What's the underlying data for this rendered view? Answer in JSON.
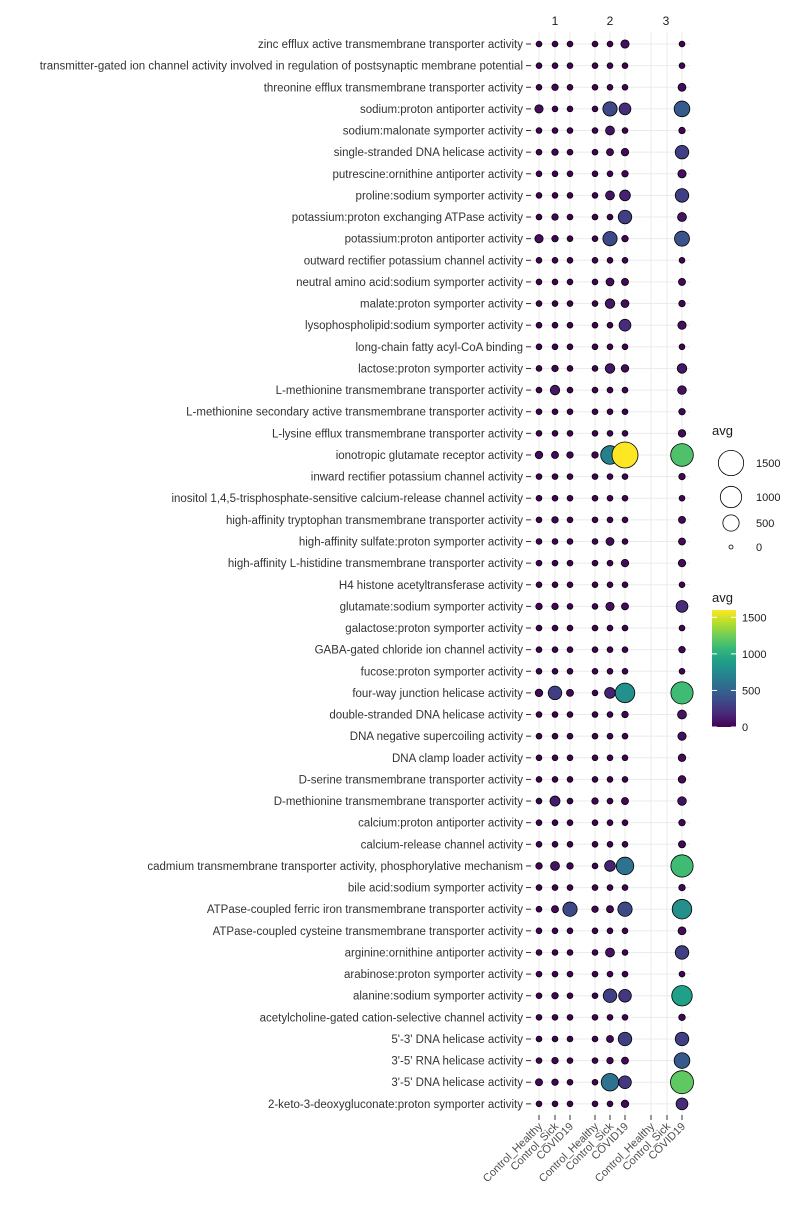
{
  "colors": {
    "viridis": [
      "#440154",
      "#482878",
      "#3e4a89",
      "#31688e",
      "#26828e",
      "#1f9e89",
      "#35b779",
      "#6dcd59",
      "#b4de2c",
      "#fde725"
    ],
    "grid": "#ebebeb",
    "point_stroke": "#000000"
  },
  "chart_data": {
    "type": "dot-plot",
    "facets": [
      "1",
      "2",
      "3"
    ],
    "x_categories": [
      "Control_Healthy",
      "Control_Sick",
      "COVID19"
    ],
    "size_legend": {
      "title": "avg",
      "breaks": [
        1500,
        1000,
        500,
        0
      ]
    },
    "color_legend": {
      "title": "avg",
      "breaks": [
        1500,
        1000,
        500,
        0
      ],
      "range": [
        0,
        1600
      ]
    },
    "terms": [
      "zinc efflux active transmembrane transporter activity",
      "transmitter-gated ion channel activity involved in regulation of postsynaptic membrane potential",
      "threonine efflux transmembrane transporter activity",
      "sodium:proton antiporter activity",
      "sodium:malonate symporter activity",
      "single-stranded DNA helicase activity",
      "putrescine:ornithine antiporter activity",
      "proline:sodium symporter activity",
      "potassium:proton exchanging ATPase activity",
      "potassium:proton antiporter activity",
      "outward rectifier potassium channel activity",
      "neutral amino acid:sodium symporter activity",
      "malate:proton symporter activity",
      "lysophospholipid:sodium symporter activity",
      "long-chain fatty acyl-CoA binding",
      "lactose:proton symporter activity",
      "L-methionine transmembrane transporter activity",
      "L-methionine secondary active transmembrane transporter activity",
      "L-lysine efflux transmembrane transporter activity",
      "ionotropic glutamate receptor activity",
      "inward rectifier potassium channel activity",
      "inositol 1,4,5-trisphosphate-sensitive calcium-release channel activity",
      "high-affinity tryptophan transmembrane transporter activity",
      "high-affinity sulfate:proton symporter activity",
      "high-affinity L-histidine transmembrane transporter activity",
      "H4 histone acetyltransferase activity",
      "glutamate:sodium symporter activity",
      "galactose:proton symporter activity",
      "GABA-gated chloride ion channel activity",
      "fucose:proton symporter activity",
      "four-way junction helicase activity",
      "double-stranded DNA helicase activity",
      "DNA negative supercoiling activity",
      "DNA clamp loader activity",
      "D-serine transmembrane transporter activity",
      "D-methionine transmembrane transporter activity",
      "calcium:proton antiporter activity",
      "calcium-release channel activity",
      "cadmium transmembrane transporter activity, phosphorylative mechanism",
      "bile acid:sodium symporter activity",
      "ATPase-coupled ferric iron transmembrane transporter activity",
      "ATPase-coupled cysteine transmembrane transporter activity",
      "arginine:ornithine antiporter activity",
      "arabinose:proton symporter activity",
      "alanine:sodium symporter activity",
      "acetylcholine-gated cation-selective channel activity",
      "5'-3' DNA helicase activity",
      "3'-5' RNA helicase activity",
      "3'-5' DNA helicase activity",
      "2-keto-3-deoxygluconate:proton symporter activity"
    ],
    "values": [
      [
        10,
        10,
        10,
        10,
        10,
        60,
        null,
        null,
        10
      ],
      [
        10,
        10,
        10,
        10,
        10,
        10,
        null,
        null,
        10
      ],
      [
        10,
        20,
        10,
        10,
        10,
        10,
        null,
        null,
        50
      ],
      [
        60,
        10,
        10,
        10,
        350,
        200,
        null,
        null,
        450
      ],
      [
        10,
        10,
        10,
        10,
        80,
        10,
        null,
        null,
        20
      ],
      [
        10,
        20,
        10,
        10,
        30,
        40,
        null,
        null,
        300
      ],
      [
        10,
        10,
        10,
        10,
        10,
        20,
        null,
        null,
        60
      ],
      [
        10,
        10,
        10,
        10,
        80,
        150,
        null,
        null,
        300
      ],
      [
        10,
        20,
        10,
        10,
        10,
        300,
        null,
        null,
        80
      ],
      [
        60,
        20,
        10,
        10,
        350,
        20,
        null,
        null,
        400
      ],
      [
        10,
        10,
        10,
        10,
        10,
        10,
        null,
        null,
        10
      ],
      [
        10,
        10,
        10,
        10,
        50,
        30,
        null,
        null,
        30
      ],
      [
        10,
        10,
        10,
        10,
        100,
        50,
        null,
        null,
        20
      ],
      [
        10,
        10,
        10,
        10,
        10,
        200,
        null,
        null,
        60
      ],
      [
        10,
        10,
        10,
        10,
        10,
        10,
        null,
        null,
        10
      ],
      [
        10,
        20,
        10,
        10,
        100,
        40,
        null,
        null,
        100
      ],
      [
        10,
        100,
        10,
        10,
        10,
        10,
        null,
        null,
        70
      ],
      [
        10,
        10,
        10,
        10,
        10,
        10,
        null,
        null,
        20
      ],
      [
        10,
        10,
        10,
        10,
        10,
        10,
        null,
        null,
        40
      ],
      [
        40,
        30,
        20,
        20,
        700,
        1600,
        null,
        null,
        1150
      ],
      [
        10,
        10,
        10,
        10,
        10,
        10,
        null,
        null,
        20
      ],
      [
        10,
        10,
        10,
        10,
        10,
        10,
        null,
        null,
        10
      ],
      [
        10,
        20,
        10,
        10,
        10,
        10,
        null,
        null,
        30
      ],
      [
        10,
        10,
        10,
        10,
        50,
        10,
        null,
        null,
        30
      ],
      [
        10,
        10,
        10,
        10,
        10,
        40,
        null,
        null,
        40
      ],
      [
        10,
        10,
        10,
        10,
        10,
        10,
        null,
        null,
        10
      ],
      [
        20,
        20,
        10,
        10,
        60,
        30,
        null,
        null,
        200
      ],
      [
        10,
        10,
        10,
        10,
        10,
        10,
        null,
        null,
        10
      ],
      [
        10,
        10,
        10,
        10,
        10,
        10,
        null,
        null,
        20
      ],
      [
        10,
        10,
        10,
        10,
        10,
        10,
        null,
        null,
        10
      ],
      [
        40,
        300,
        30,
        10,
        150,
        800,
        null,
        null,
        1100
      ],
      [
        10,
        10,
        10,
        10,
        10,
        20,
        null,
        null,
        80
      ],
      [
        10,
        10,
        10,
        10,
        10,
        10,
        null,
        null,
        60
      ],
      [
        10,
        10,
        10,
        10,
        10,
        10,
        null,
        null,
        40
      ],
      [
        10,
        10,
        10,
        10,
        10,
        10,
        null,
        null,
        40
      ],
      [
        10,
        120,
        10,
        20,
        10,
        30,
        null,
        null,
        70
      ],
      [
        10,
        10,
        10,
        10,
        10,
        10,
        null,
        null,
        20
      ],
      [
        10,
        10,
        10,
        10,
        10,
        10,
        null,
        null,
        30
      ],
      [
        20,
        80,
        20,
        10,
        150,
        600,
        null,
        null,
        1100
      ],
      [
        10,
        10,
        10,
        10,
        10,
        10,
        null,
        null,
        20
      ],
      [
        10,
        30,
        350,
        20,
        30,
        350,
        null,
        null,
        800
      ],
      [
        10,
        10,
        10,
        10,
        10,
        10,
        null,
        null,
        50
      ],
      [
        10,
        10,
        10,
        10,
        80,
        10,
        null,
        null,
        300
      ],
      [
        10,
        10,
        10,
        10,
        10,
        10,
        null,
        null,
        10
      ],
      [
        10,
        20,
        10,
        10,
        300,
        250,
        null,
        null,
        900
      ],
      [
        10,
        10,
        10,
        10,
        10,
        10,
        null,
        null,
        20
      ],
      [
        10,
        10,
        10,
        10,
        30,
        300,
        null,
        null,
        300
      ],
      [
        10,
        20,
        10,
        10,
        20,
        30,
        null,
        null,
        450
      ],
      [
        30,
        20,
        10,
        10,
        600,
        250,
        null,
        null,
        1200
      ],
      [
        10,
        10,
        10,
        10,
        10,
        40,
        null,
        null,
        200
      ]
    ]
  }
}
